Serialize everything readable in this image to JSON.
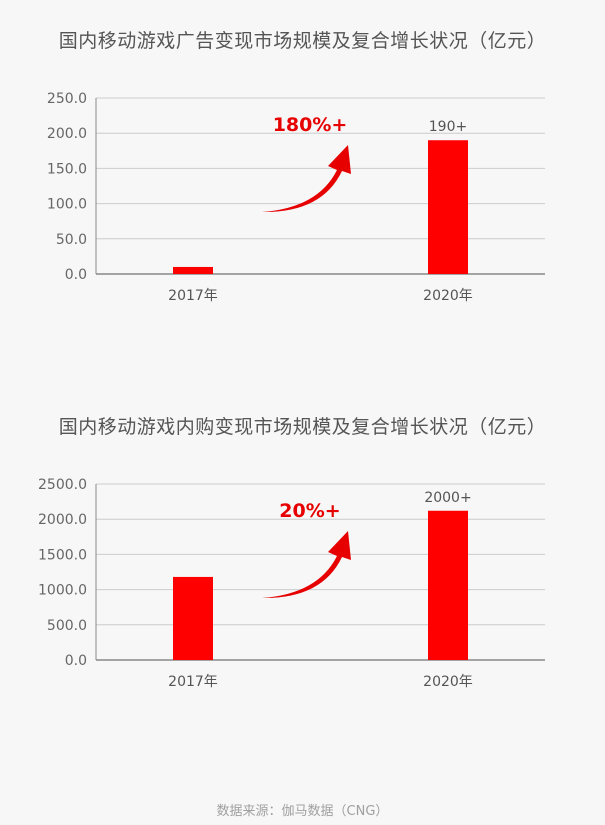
{
  "colors": {
    "bar": "#ff0000",
    "growth_text": "#e60000",
    "arrow": "#e60000",
    "grid": "#cccccc",
    "axis": "#888888"
  },
  "chart_data": [
    {
      "type": "bar",
      "title": "国内移动游戏广告变现市场规模及复合增长状况（亿元）",
      "categories": [
        "2017年",
        "2020年"
      ],
      "values": [
        10,
        190
      ],
      "data_labels": [
        "",
        "190+"
      ],
      "yticks": [
        "0.0",
        "50.0",
        "100.0",
        "150.0",
        "200.0",
        "250.0"
      ],
      "ylim": [
        0,
        250
      ],
      "grid": true,
      "annotation": "180%+"
    },
    {
      "type": "bar",
      "title": "国内移动游戏内购变现市场规模及复合增长状况（亿元）",
      "categories": [
        "2017年",
        "2020年"
      ],
      "values": [
        1180,
        2120
      ],
      "data_labels": [
        "",
        "2000+"
      ],
      "yticks": [
        "0.0",
        "500.0",
        "1000.0",
        "1500.0",
        "2000.0",
        "2500.0"
      ],
      "ylim": [
        0,
        2500
      ],
      "grid": true,
      "annotation": "20%+"
    }
  ],
  "source": "数据来源：伽马数据（CNG）"
}
